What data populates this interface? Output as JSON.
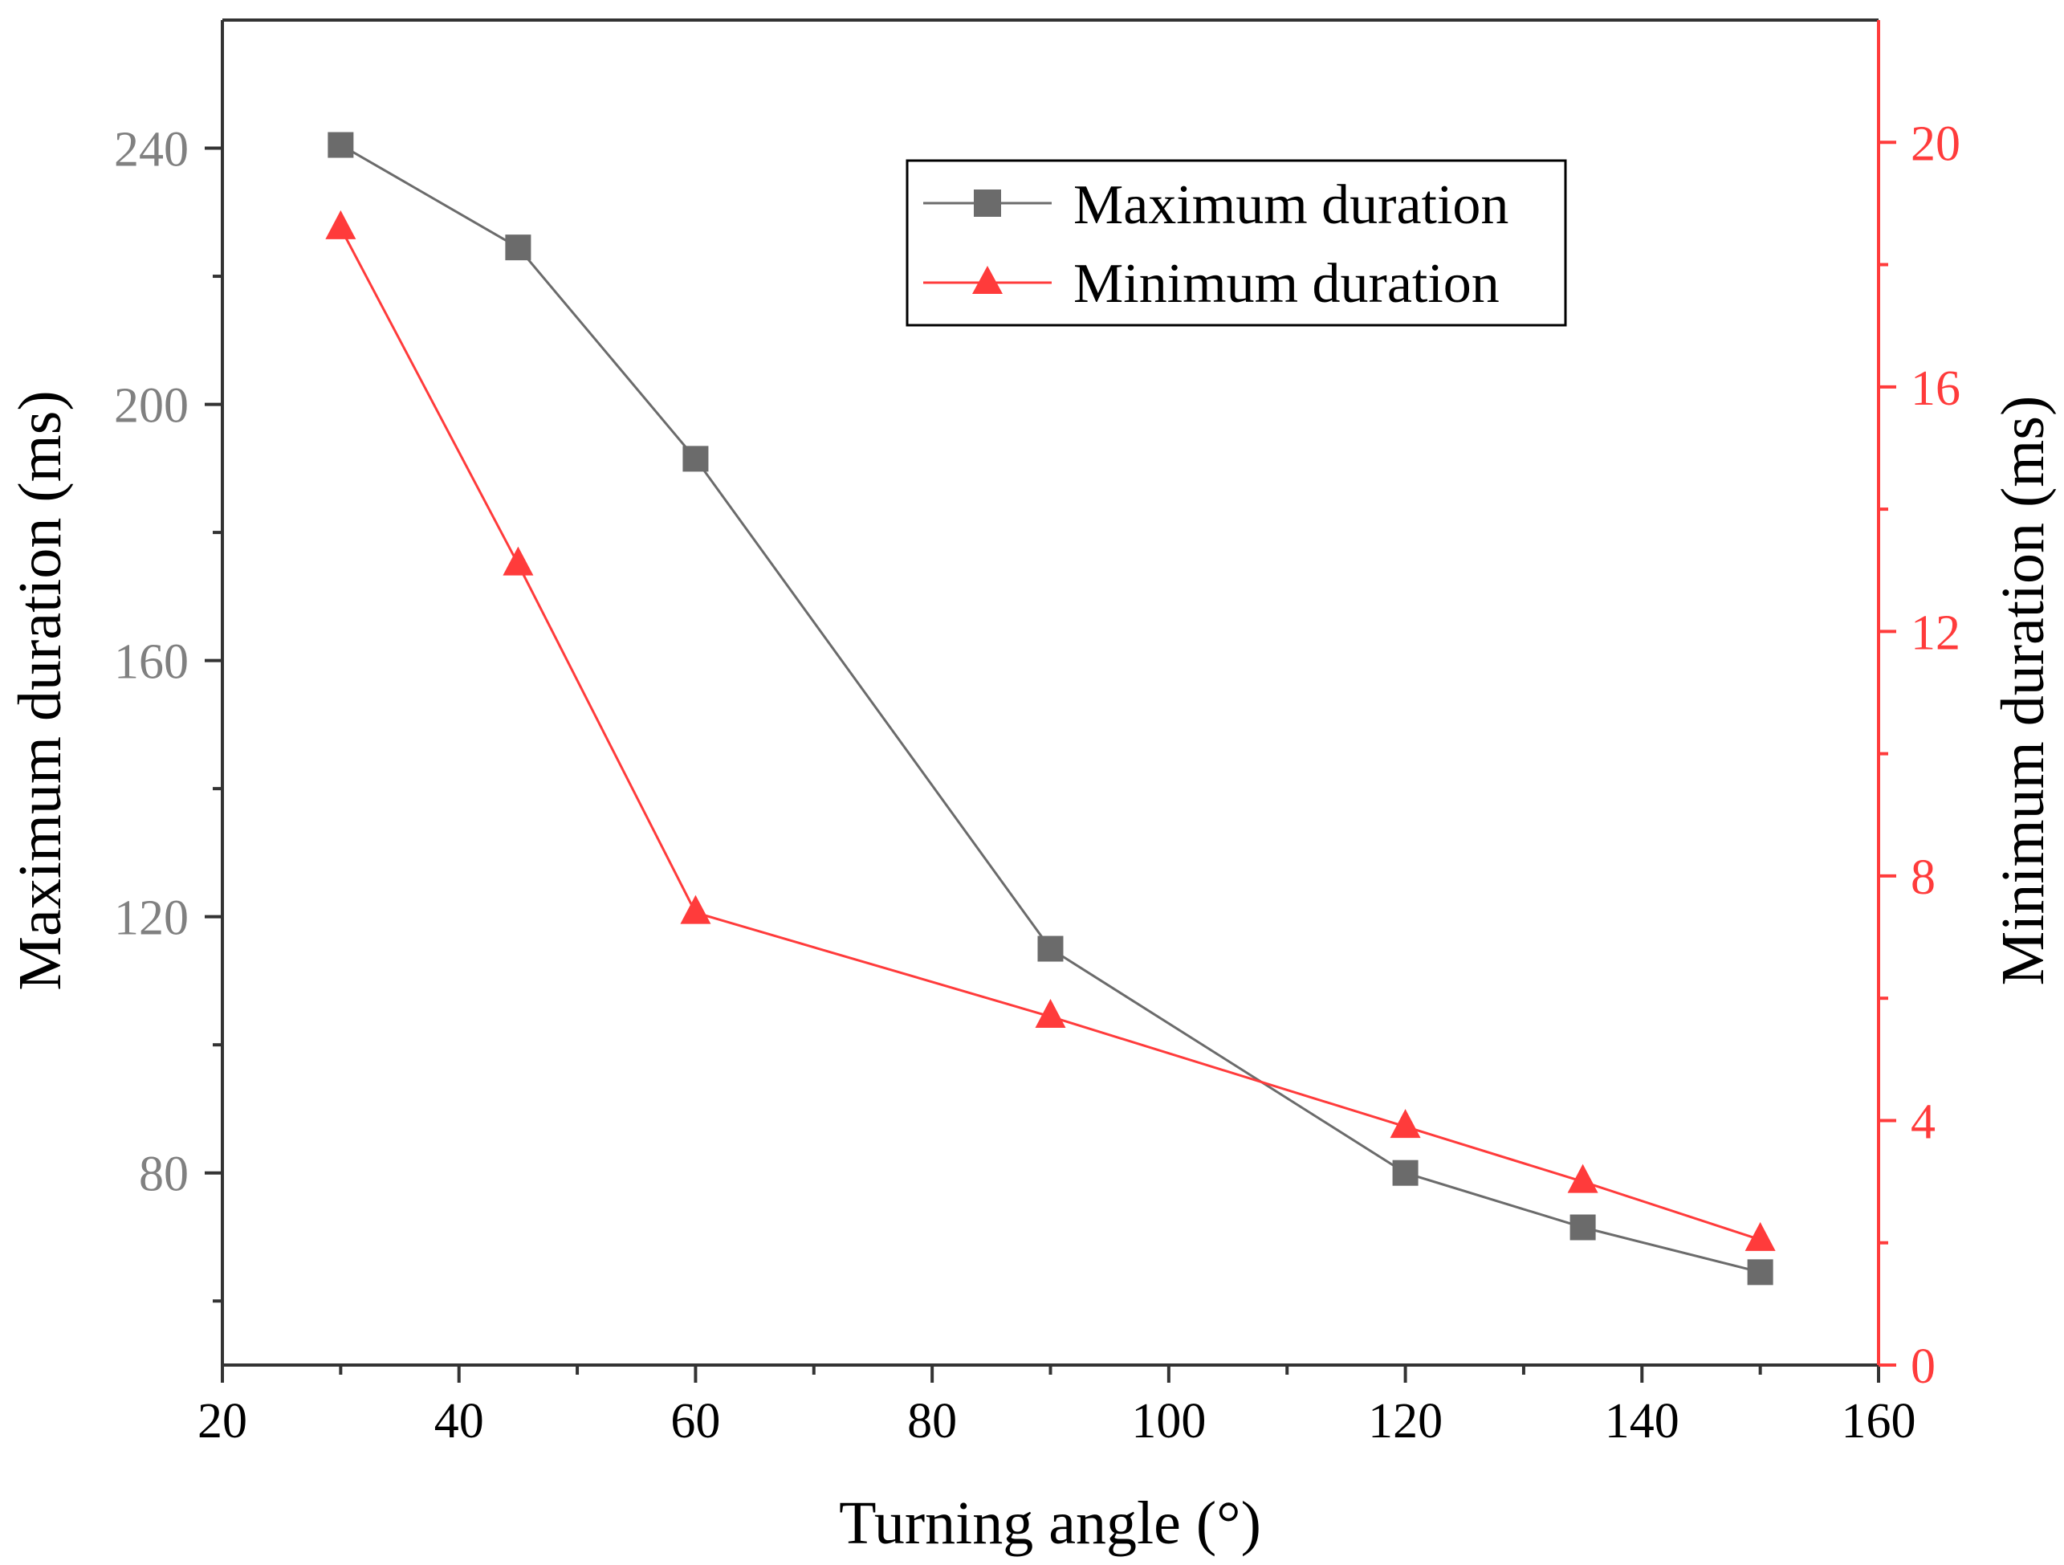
{
  "chart_data": {
    "type": "line",
    "title": "",
    "xlabel": "Turning angle (°)",
    "ylabel": "Maximum duration (ms)",
    "y2label": "Minimum duration (ms)",
    "xlim": [
      20,
      160
    ],
    "ylim": [
      50,
      260
    ],
    "y2lim": [
      0,
      22
    ],
    "x_ticks": [
      20,
      40,
      60,
      80,
      100,
      120,
      140,
      160
    ],
    "y_ticks": [
      80,
      120,
      160,
      200,
      240
    ],
    "y2_ticks": [
      0,
      4,
      8,
      12,
      16,
      20
    ],
    "x": [
      30,
      45,
      60,
      90,
      120,
      135,
      150
    ],
    "series": [
      {
        "name": "Maximum duration",
        "axis": "left",
        "marker": "square",
        "color": "#6b6b6b",
        "values": [
          240.5,
          224.5,
          191.5,
          115,
          80,
          71.5,
          64.5
        ]
      },
      {
        "name": "Minimum duration",
        "axis": "right",
        "marker": "triangle",
        "color": "#ff3b3b",
        "values": [
          18.6,
          13.1,
          7.4,
          5.7,
          3.9,
          3.0,
          2.05
        ]
      }
    ],
    "legend_position": "top-right",
    "colors": {
      "left_axis": "#808080",
      "right_axis": "#ff3b3b",
      "frame": "#333333"
    }
  }
}
